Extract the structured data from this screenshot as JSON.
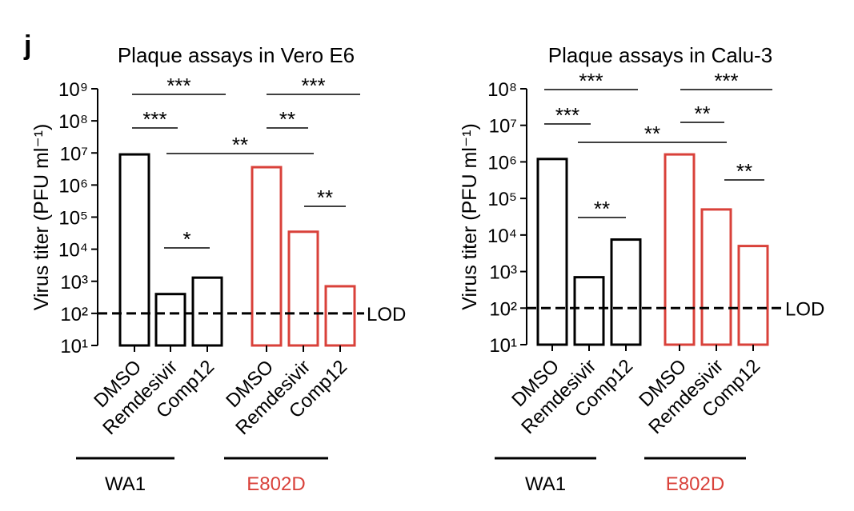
{
  "panel_label": "j",
  "chart_data": [
    {
      "type": "bar",
      "title": "Plaque assays in Vero E6",
      "y_label": "Virus titer (PFU ml⁻¹)",
      "log_scale": true,
      "categories": [
        "DMSO",
        "Remdesivir",
        "Comp12"
      ],
      "series": [
        {
          "name": "WA1",
          "color": "#000000",
          "values": [
            9000000,
            400,
            1300
          ]
        },
        {
          "name": "E802D",
          "color": "#d9413a",
          "values": [
            3600000,
            35000,
            700
          ]
        }
      ],
      "ylim": [
        10,
        1000000000
      ],
      "yticks": [
        {
          "value": 10,
          "label": "10¹"
        },
        {
          "value": 100,
          "label": "10²"
        },
        {
          "value": 1000,
          "label": "10³"
        },
        {
          "value": 10000,
          "label": "10⁴"
        },
        {
          "value": 100000,
          "label": "10⁵"
        },
        {
          "value": 1000000,
          "label": "10⁶"
        },
        {
          "value": 10000000,
          "label": "10⁷"
        },
        {
          "value": 100000000,
          "label": "10⁸"
        },
        {
          "value": 1000000000,
          "label": "10⁹"
        }
      ],
      "reference_line": {
        "value": 100,
        "label": "LOD"
      },
      "annotations": [
        "***",
        "***",
        "**",
        "*",
        "***",
        "**",
        "**"
      ]
    },
    {
      "type": "bar",
      "title": "Plaque assays in Calu-3",
      "y_label": "Virus titer (PFU ml⁻¹)",
      "log_scale": true,
      "categories": [
        "DMSO",
        "Remdesivir",
        "Comp12"
      ],
      "series": [
        {
          "name": "WA1",
          "color": "#000000",
          "values": [
            1200000,
            700,
            7500
          ]
        },
        {
          "name": "E802D",
          "color": "#d9413a",
          "values": [
            1600000,
            50000,
            5000
          ]
        }
      ],
      "ylim": [
        10,
        100000000
      ],
      "yticks": [
        {
          "value": 10,
          "label": "10¹"
        },
        {
          "value": 100,
          "label": "10²"
        },
        {
          "value": 1000,
          "label": "10³"
        },
        {
          "value": 10000,
          "label": "10⁴"
        },
        {
          "value": 100000,
          "label": "10⁵"
        },
        {
          "value": 1000000,
          "label": "10⁶"
        },
        {
          "value": 10000000,
          "label": "10⁷"
        },
        {
          "value": 100000000,
          "label": "10⁸"
        }
      ],
      "reference_line": {
        "value": 100,
        "label": "LOD"
      },
      "annotations": [
        "***",
        "***",
        "**",
        "**",
        "***",
        "**",
        "**"
      ]
    }
  ]
}
